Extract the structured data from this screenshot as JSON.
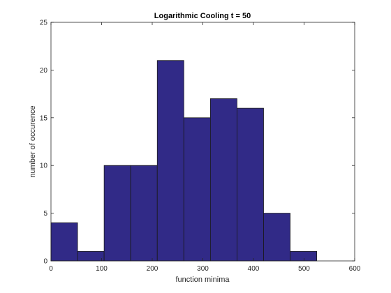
{
  "chart_data": {
    "type": "bar",
    "title": "Logarithmic Cooling t = 50",
    "xlabel": "function minima",
    "ylabel": "number of occurence",
    "bin_edges": [
      0,
      52.5,
      105,
      157.5,
      210,
      262.5,
      315,
      367.5,
      420,
      472.5,
      525
    ],
    "values": [
      4,
      1,
      10,
      10,
      21,
      15,
      17,
      16,
      5,
      1
    ],
    "xlim": [
      0,
      600
    ],
    "ylim": [
      0,
      25
    ],
    "xticks": [
      0,
      100,
      200,
      300,
      400,
      500,
      600
    ],
    "yticks": [
      0,
      5,
      10,
      15,
      20,
      25
    ],
    "grid": false,
    "colors": {
      "bar_fill": "#312a87",
      "bar_edge": "#1a1a1a",
      "axis": "#262626"
    }
  }
}
